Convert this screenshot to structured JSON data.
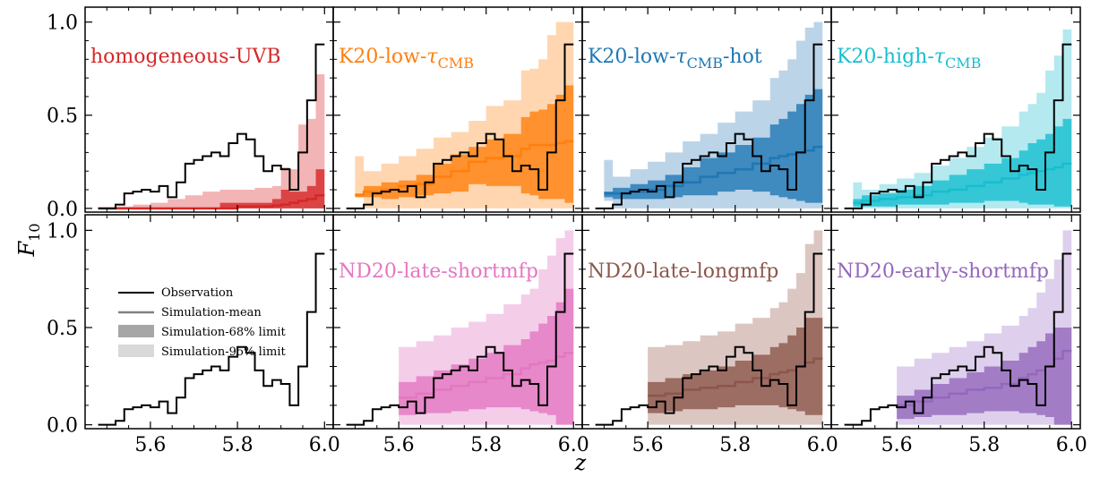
{
  "figure": {
    "xlabel": "z",
    "ylabel": "F",
    "ylabel_sub": "10",
    "x_ticks": [
      "5.6",
      "5.8",
      "6.0"
    ],
    "y_ticks": [
      "0.0",
      "0.5",
      "1.0"
    ]
  },
  "legend": {
    "entries": [
      {
        "label": "Observation",
        "kind": "line",
        "color": "#000000"
      },
      {
        "label": "Simulation-mean",
        "kind": "line",
        "color": "#808080"
      },
      {
        "label": "Simulation-68% limit",
        "kind": "box",
        "color": "#a6a6a6"
      },
      {
        "label": "Simulation-95% limit",
        "kind": "box",
        "color": "#d9d9d9"
      }
    ]
  },
  "chart_data": {
    "type": "step-band",
    "xlim": [
      5.45,
      6.02
    ],
    "ylim": [
      -0.02,
      1.08
    ],
    "grid": false,
    "observation": {
      "edges": [
        5.48,
        5.52,
        5.54,
        5.56,
        5.58,
        5.6,
        5.62,
        5.64,
        5.66,
        5.68,
        5.7,
        5.72,
        5.74,
        5.76,
        5.78,
        5.8,
        5.82,
        5.84,
        5.86,
        5.88,
        5.9,
        5.92,
        5.94,
        5.96,
        5.98,
        6.0
      ],
      "values": [
        0.0,
        0.02,
        0.08,
        0.09,
        0.1,
        0.09,
        0.12,
        0.06,
        0.14,
        0.24,
        0.26,
        0.28,
        0.3,
        0.28,
        0.35,
        0.4,
        0.37,
        0.28,
        0.2,
        0.23,
        0.21,
        0.1,
        0.3,
        0.58,
        0.88
      ]
    },
    "panels": [
      {
        "label": "homogeneous-UVB",
        "label_sub": "",
        "label_suffix": "",
        "color": "#d62728",
        "light": "#f2b4b4",
        "sim_edges": [
          5.48,
          5.52,
          5.56,
          5.6,
          5.64,
          5.68,
          5.72,
          5.76,
          5.8,
          5.84,
          5.88,
          5.9,
          5.92,
          5.94,
          5.96,
          5.98,
          6.0
        ],
        "mean": [
          0.0,
          0.0,
          0.0,
          0.0,
          0.0,
          0.0,
          0.0,
          0.0,
          0.01,
          0.01,
          0.015,
          0.02,
          0.03,
          0.04,
          0.05,
          0.07
        ],
        "lo68": [
          0.0,
          0.0,
          0.0,
          0.0,
          0.0,
          0.0,
          0.0,
          0.0,
          0.0,
          0.0,
          0.0,
          0.0,
          0.0,
          0.0,
          0.0,
          0.0
        ],
        "hi68": [
          0.0,
          0.0,
          0.0,
          0.0,
          0.0,
          0.0,
          0.0,
          0.03,
          0.03,
          0.03,
          0.05,
          0.1,
          0.09,
          0.09,
          0.12,
          0.21
        ],
        "lo95": [
          0.0,
          0.0,
          0.0,
          0.0,
          0.0,
          0.0,
          0.0,
          0.0,
          0.0,
          0.0,
          0.0,
          0.0,
          0.0,
          0.0,
          0.0,
          0.0
        ],
        "hi95": [
          0.0,
          0.01,
          0.02,
          0.03,
          0.05,
          0.07,
          0.09,
          0.1,
          0.1,
          0.11,
          0.12,
          0.22,
          0.21,
          0.45,
          0.48,
          0.72
        ]
      },
      {
        "label": "K20-low-",
        "label_sub": "CMB",
        "label_suffix": "",
        "color": "#ff7f0e",
        "light": "#ffd6b0",
        "sim_edges": [
          5.5,
          5.52,
          5.56,
          5.6,
          5.64,
          5.68,
          5.72,
          5.76,
          5.8,
          5.84,
          5.88,
          5.9,
          5.92,
          5.94,
          5.96,
          5.98,
          6.0
        ],
        "mean": [
          0.07,
          0.09,
          0.1,
          0.12,
          0.13,
          0.17,
          0.2,
          0.25,
          0.27,
          0.28,
          0.32,
          0.34,
          0.34,
          0.34,
          0.35,
          0.36
        ],
        "lo68": [
          0.06,
          0.06,
          0.05,
          0.06,
          0.07,
          0.08,
          0.09,
          0.13,
          0.12,
          0.12,
          0.08,
          0.07,
          0.05,
          0.05,
          0.05,
          0.03
        ],
        "hi68": [
          0.08,
          0.12,
          0.14,
          0.15,
          0.18,
          0.24,
          0.29,
          0.33,
          0.37,
          0.4,
          0.49,
          0.52,
          0.53,
          0.56,
          0.61,
          0.66
        ],
        "lo95": [
          0.06,
          0.0,
          0.0,
          0.0,
          0.0,
          0.0,
          0.0,
          0.0,
          0.0,
          0.0,
          0.0,
          0.0,
          0.0,
          0.0,
          0.0,
          0.0
        ],
        "hi95": [
          0.28,
          0.2,
          0.24,
          0.28,
          0.32,
          0.38,
          0.41,
          0.47,
          0.55,
          0.58,
          0.74,
          0.75,
          0.8,
          0.93,
          1.0,
          1.0
        ]
      },
      {
        "label": "K20-low-",
        "label_sub": "CMB",
        "label_suffix": "-hot",
        "color": "#1f77b4",
        "light": "#bcd4e8",
        "sim_edges": [
          5.5,
          5.52,
          5.56,
          5.6,
          5.64,
          5.68,
          5.72,
          5.76,
          5.8,
          5.84,
          5.88,
          5.9,
          5.92,
          5.94,
          5.96,
          5.98,
          6.0
        ],
        "mean": [
          0.08,
          0.08,
          0.09,
          0.1,
          0.12,
          0.14,
          0.17,
          0.19,
          0.21,
          0.24,
          0.27,
          0.28,
          0.29,
          0.3,
          0.31,
          0.33
        ],
        "lo68": [
          0.06,
          0.05,
          0.05,
          0.05,
          0.06,
          0.07,
          0.07,
          0.09,
          0.1,
          0.09,
          0.07,
          0.06,
          0.05,
          0.04,
          0.03,
          0.03
        ],
        "hi68": [
          0.09,
          0.11,
          0.13,
          0.15,
          0.18,
          0.22,
          0.27,
          0.3,
          0.34,
          0.38,
          0.45,
          0.48,
          0.52,
          0.56,
          0.61,
          0.64
        ],
        "lo95": [
          0.04,
          0.0,
          0.0,
          0.0,
          0.0,
          0.0,
          0.0,
          0.0,
          0.0,
          0.0,
          0.0,
          0.0,
          0.0,
          0.0,
          0.0,
          0.0
        ],
        "hi95": [
          0.26,
          0.17,
          0.21,
          0.25,
          0.3,
          0.36,
          0.4,
          0.46,
          0.52,
          0.58,
          0.7,
          0.74,
          0.8,
          0.9,
          0.97,
          1.0
        ]
      },
      {
        "label": "K20-high-",
        "label_sub": "CMB",
        "label_suffix": "",
        "color": "#17becf",
        "light": "#b3e9ef",
        "sim_edges": [
          5.5,
          5.52,
          5.56,
          5.6,
          5.64,
          5.68,
          5.72,
          5.76,
          5.8,
          5.84,
          5.88,
          5.9,
          5.92,
          5.94,
          5.96,
          5.98,
          6.0
        ],
        "mean": [
          0.03,
          0.04,
          0.05,
          0.06,
          0.07,
          0.09,
          0.1,
          0.12,
          0.14,
          0.16,
          0.18,
          0.19,
          0.2,
          0.21,
          0.22,
          0.24
        ],
        "lo68": [
          0.01,
          0.01,
          0.01,
          0.02,
          0.02,
          0.02,
          0.03,
          0.03,
          0.04,
          0.04,
          0.03,
          0.02,
          0.02,
          0.02,
          0.01,
          0.01
        ],
        "hi68": [
          0.05,
          0.07,
          0.08,
          0.1,
          0.12,
          0.15,
          0.18,
          0.21,
          0.24,
          0.27,
          0.31,
          0.35,
          0.37,
          0.4,
          0.44,
          0.48
        ],
        "lo95": [
          0.0,
          0.0,
          0.0,
          0.0,
          0.0,
          0.0,
          0.0,
          0.0,
          0.0,
          0.0,
          0.0,
          0.0,
          0.0,
          0.0,
          0.0,
          0.0
        ],
        "hi95": [
          0.14,
          0.1,
          0.13,
          0.16,
          0.19,
          0.23,
          0.27,
          0.33,
          0.38,
          0.44,
          0.52,
          0.56,
          0.62,
          0.74,
          0.82,
          0.96
        ]
      },
      {
        "label": "",
        "label_sub": "",
        "label_suffix": "",
        "color": "#000000",
        "light": "#ffffff",
        "empty": true
      },
      {
        "label": "ND20-late-shortmfp",
        "label_sub": "",
        "label_suffix": "",
        "color": "#e377c2",
        "light": "#f4cde9",
        "sim_edges": [
          5.6,
          5.64,
          5.68,
          5.72,
          5.76,
          5.8,
          5.84,
          5.88,
          5.9,
          5.92,
          5.94,
          5.96,
          5.98,
          6.0
        ],
        "mean": [
          0.14,
          0.16,
          0.18,
          0.2,
          0.22,
          0.24,
          0.26,
          0.29,
          0.31,
          0.32,
          0.33,
          0.35,
          0.37
        ],
        "lo68": [
          0.05,
          0.06,
          0.06,
          0.07,
          0.08,
          0.09,
          0.09,
          0.08,
          0.07,
          0.06,
          0.05,
          0.0,
          0.0
        ],
        "hi68": [
          0.22,
          0.25,
          0.28,
          0.31,
          0.34,
          0.37,
          0.41,
          0.44,
          0.48,
          0.52,
          0.56,
          0.63,
          0.7
        ],
        "lo95": [
          0.0,
          0.0,
          0.0,
          0.0,
          0.0,
          0.0,
          0.0,
          0.0,
          0.0,
          0.0,
          0.0,
          0.0,
          0.0
        ],
        "hi95": [
          0.4,
          0.43,
          0.46,
          0.5,
          0.53,
          0.57,
          0.62,
          0.67,
          0.7,
          0.8,
          0.87,
          0.96,
          1.0
        ]
      },
      {
        "label": "ND20-late-longmfp",
        "label_sub": "",
        "label_suffix": "",
        "color": "#8c564b",
        "light": "#dcc6c2",
        "sim_edges": [
          5.6,
          5.64,
          5.68,
          5.72,
          5.76,
          5.8,
          5.84,
          5.88,
          5.9,
          5.92,
          5.94,
          5.96,
          5.98,
          6.0
        ],
        "mean": [
          0.15,
          0.16,
          0.18,
          0.19,
          0.2,
          0.22,
          0.24,
          0.26,
          0.27,
          0.28,
          0.3,
          0.32,
          0.34
        ],
        "lo68": [
          0.06,
          0.07,
          0.08,
          0.08,
          0.09,
          0.1,
          0.1,
          0.1,
          0.09,
          0.08,
          0.07,
          0.05,
          0.05
        ],
        "hi68": [
          0.22,
          0.24,
          0.26,
          0.28,
          0.3,
          0.33,
          0.36,
          0.4,
          0.42,
          0.46,
          0.5,
          0.55,
          0.55
        ],
        "lo95": [
          0.0,
          0.0,
          0.0,
          0.0,
          0.0,
          0.0,
          0.0,
          0.0,
          0.0,
          0.0,
          0.0,
          0.0,
          0.0
        ],
        "hi95": [
          0.4,
          0.41,
          0.43,
          0.46,
          0.48,
          0.52,
          0.55,
          0.6,
          0.63,
          0.7,
          0.78,
          0.93,
          1.0
        ]
      },
      {
        "label": "ND20-early-shortmfp",
        "label_sub": "",
        "label_suffix": "",
        "color": "#9467bd",
        "light": "#ded0ec",
        "sim_edges": [
          5.6,
          5.64,
          5.68,
          5.72,
          5.76,
          5.8,
          5.84,
          5.88,
          5.9,
          5.92,
          5.94,
          5.96,
          5.98,
          6.0
        ],
        "mean": [
          0.1,
          0.12,
          0.14,
          0.16,
          0.18,
          0.19,
          0.21,
          0.24,
          0.26,
          0.28,
          0.3,
          0.34,
          0.38
        ],
        "lo68": [
          0.03,
          0.04,
          0.05,
          0.05,
          0.06,
          0.07,
          0.07,
          0.06,
          0.06,
          0.05,
          0.04,
          0.0,
          0.0
        ],
        "hi68": [
          0.15,
          0.18,
          0.21,
          0.24,
          0.27,
          0.3,
          0.33,
          0.37,
          0.4,
          0.43,
          0.47,
          0.5,
          0.5
        ],
        "lo95": [
          0.0,
          0.0,
          0.0,
          0.0,
          0.0,
          0.0,
          0.0,
          0.0,
          0.0,
          0.0,
          0.0,
          0.0,
          0.0
        ],
        "hi95": [
          0.3,
          0.34,
          0.37,
          0.4,
          0.43,
          0.47,
          0.51,
          0.56,
          0.6,
          0.68,
          0.75,
          0.85,
          1.0
        ]
      }
    ]
  }
}
